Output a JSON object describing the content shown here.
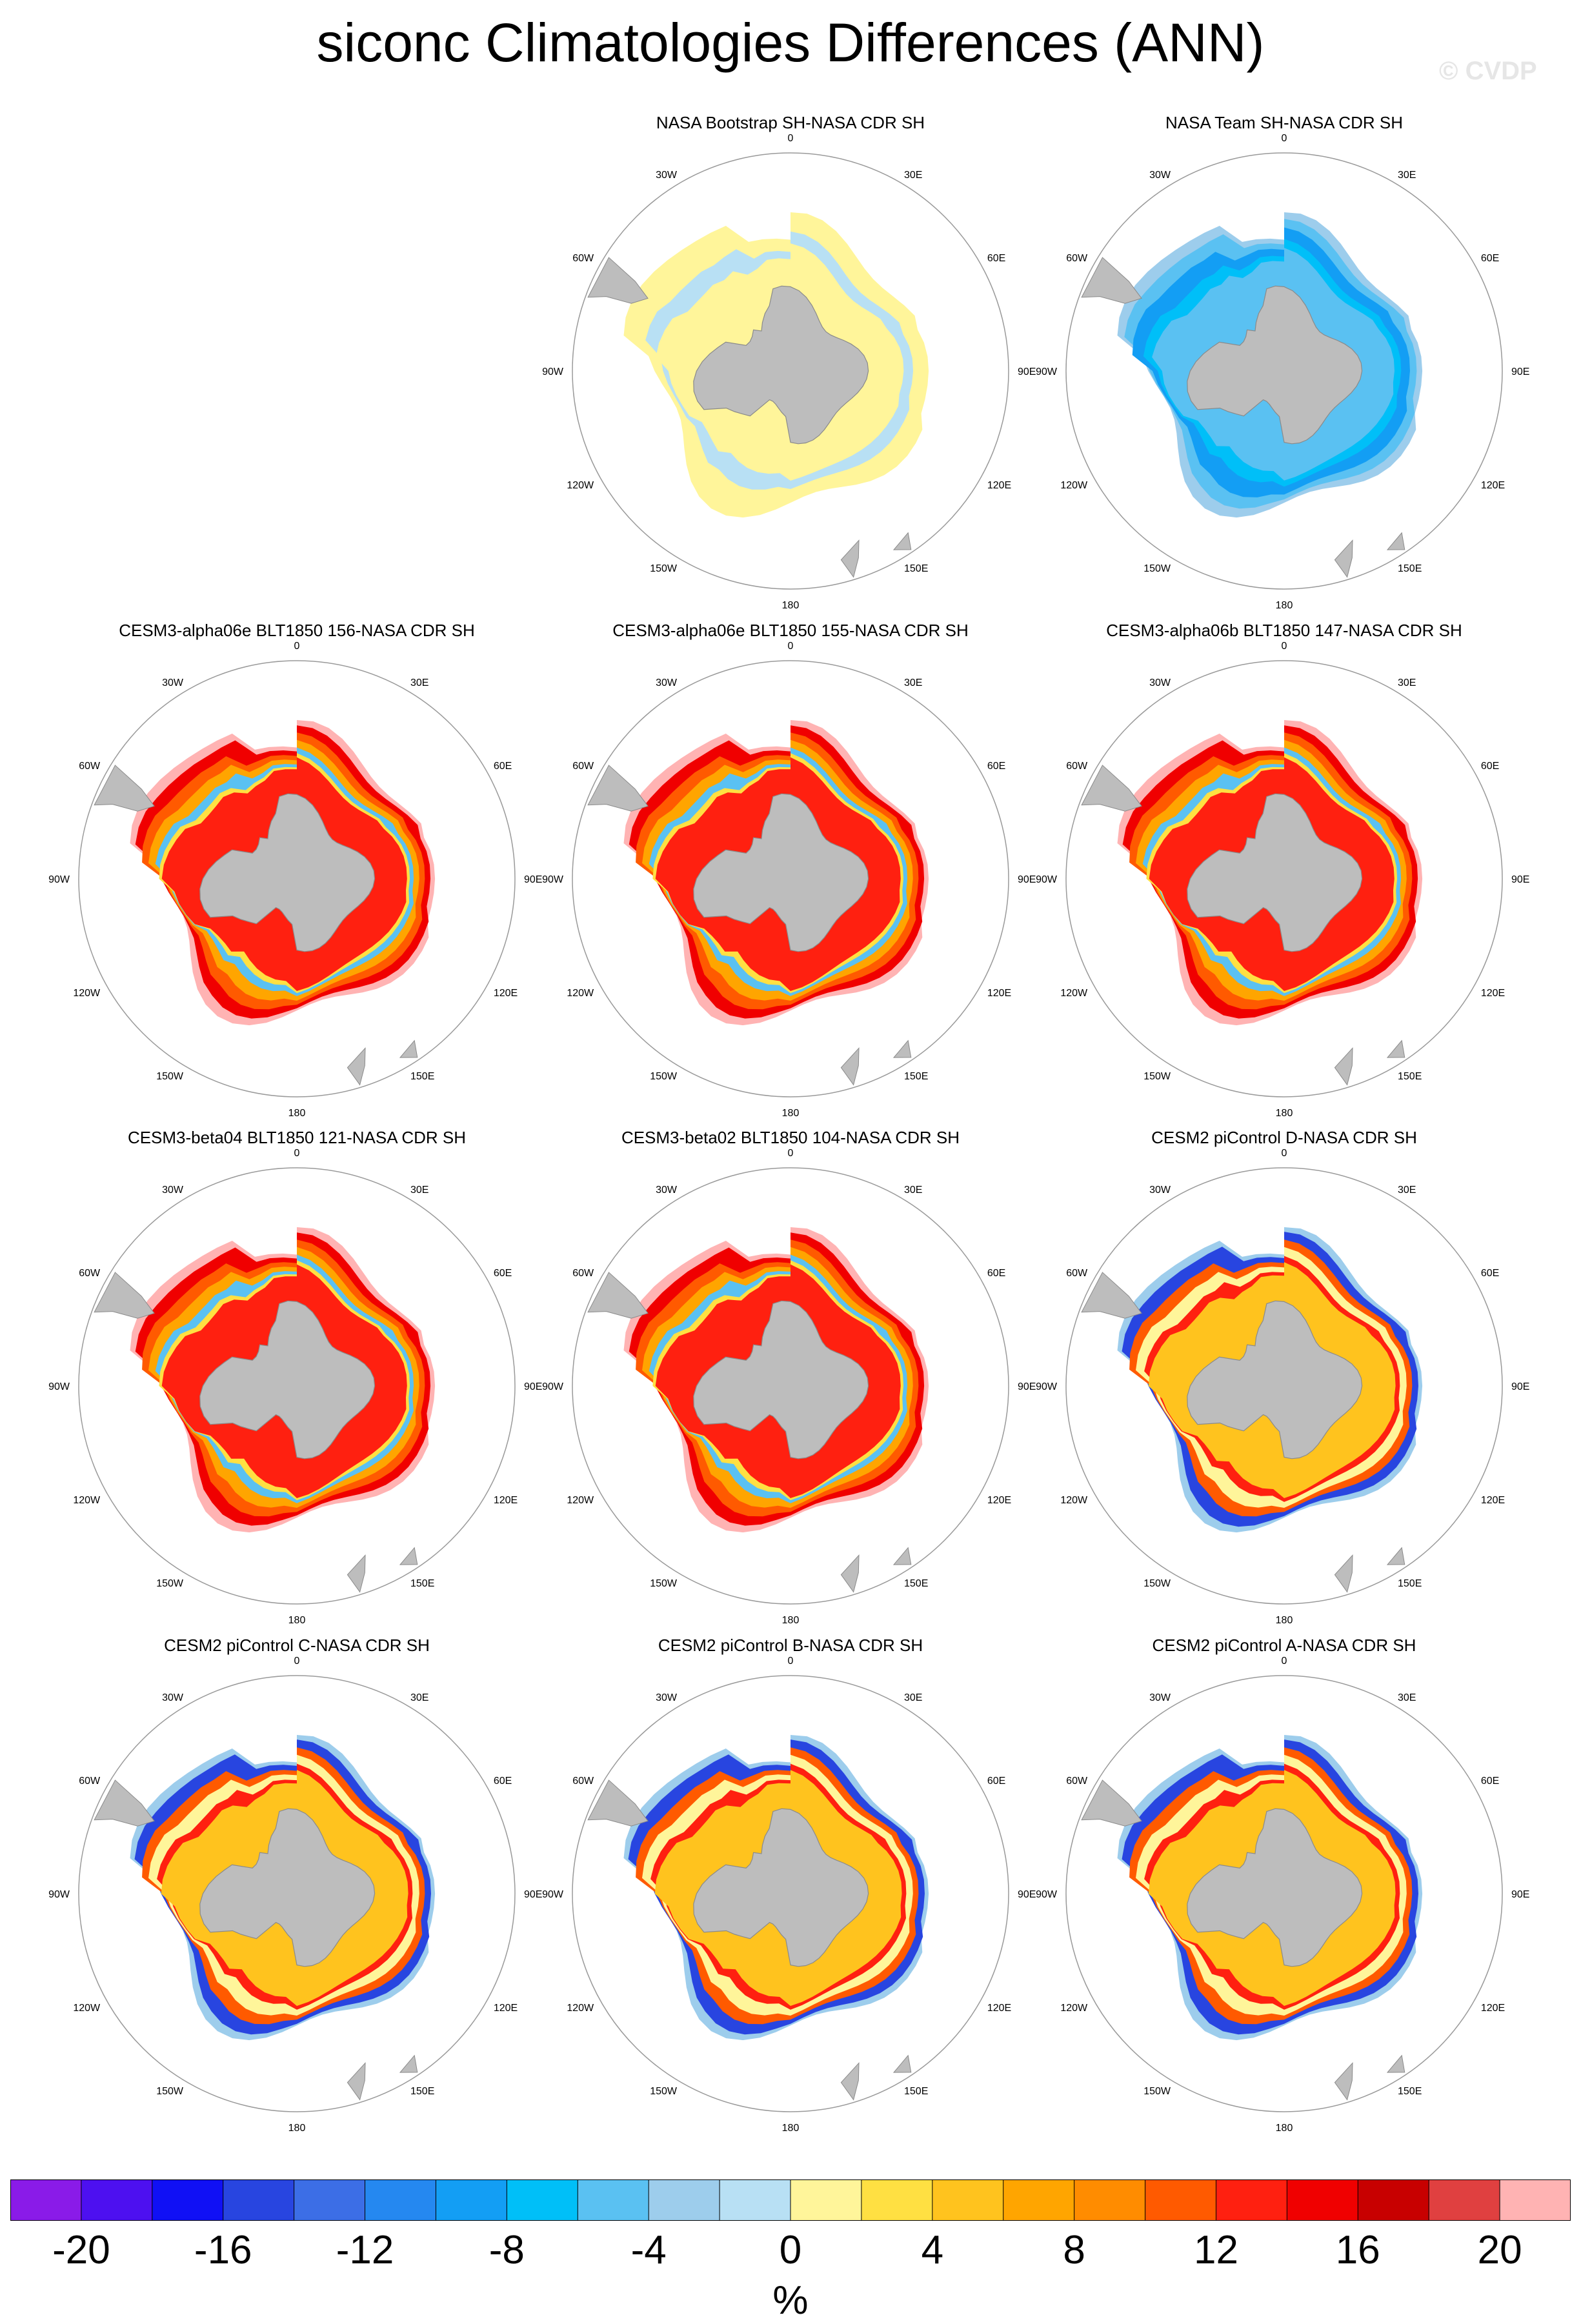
{
  "header": {
    "title": "siconc Climatologies Differences (ANN)",
    "watermark": "© CVDP"
  },
  "chart_data": {
    "type": "heatmap",
    "title": "siconc Climatologies Differences (ANN)",
    "projection": "south polar stereographic",
    "units": "%",
    "colorbar": {
      "ticks": [
        "-20",
        "-16",
        "-12",
        "-8",
        "-4",
        "0",
        "4",
        "8",
        "12",
        "16",
        "20"
      ],
      "levels": [
        -20,
        -18,
        -16,
        -14,
        -12,
        -10,
        -8,
        -6,
        -4,
        -2,
        0,
        2,
        4,
        6,
        8,
        10,
        12,
        14,
        16,
        18,
        20
      ],
      "colors": [
        "#8a1be8",
        "#4d10f0",
        "#1010f5",
        "#2845e0",
        "#3c6ee6",
        "#2588f0",
        "#139ef4",
        "#00bff8",
        "#5ac1f2",
        "#9dcdec",
        "#b8e0f4",
        "#fff59a",
        "#ffe042",
        "#ffc31e",
        "#ffa500",
        "#ff8c00",
        "#ff5a00",
        "#ff2010",
        "#f00000",
        "#c80000",
        "#e04040",
        "#ffb3b3"
      ],
      "label": "%"
    },
    "grid_labels": {
      "top": "0",
      "bottom": "180",
      "upper_left": "30W",
      "upper_right": "30E",
      "mid_upper_left": "60W",
      "mid_upper_right": "60E",
      "left": "90W",
      "right": "90E",
      "mid_lower_left": "120W",
      "mid_lower_right": "120E",
      "lower_left": "150W",
      "lower_right": "150E"
    },
    "panels": [
      {
        "title": "NASA Bootstrap SH-NASA CDR SH",
        "pattern": "yellow-ring"
      },
      {
        "title": "NASA Team SH-NASA CDR SH",
        "pattern": "blue-ring"
      },
      {
        "title": "CESM3-alpha06e BLT1850 156-NASA CDR SH",
        "pattern": "red-mixed"
      },
      {
        "title": "CESM3-alpha06e BLT1850 155-NASA CDR SH",
        "pattern": "red-mixed"
      },
      {
        "title": "CESM3-alpha06b BLT1850 147-NASA CDR SH",
        "pattern": "red-mixed"
      },
      {
        "title": "CESM3-beta04 BLT1850 121-NASA CDR SH",
        "pattern": "red-mixed"
      },
      {
        "title": "CESM3-beta02 BLT1850 104-NASA CDR SH",
        "pattern": "red-mixed"
      },
      {
        "title": "CESM2 piControl D-NASA CDR SH",
        "pattern": "blue-red"
      },
      {
        "title": "CESM2 piControl C-NASA CDR SH",
        "pattern": "blue-red"
      },
      {
        "title": "CESM2 piControl B-NASA CDR SH",
        "pattern": "blue-red"
      },
      {
        "title": "CESM2 piControl A-NASA CDR SH",
        "pattern": "blue-red"
      }
    ]
  }
}
